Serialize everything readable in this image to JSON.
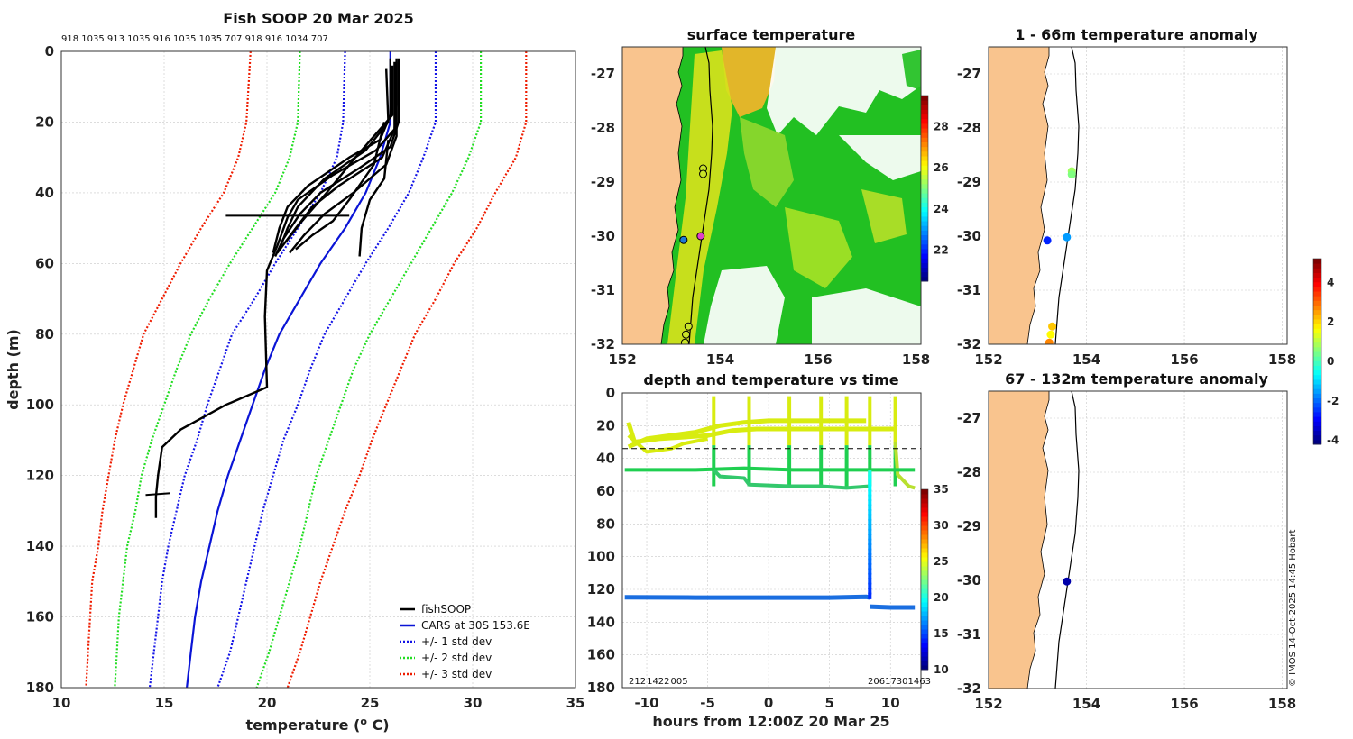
{
  "chart_data": [
    {
      "id": "profile",
      "type": "line",
      "title": "Fish SOOP 20 Mar 2025",
      "top_labels": "918 1035 913 1035 916 1035 1035 707 918 916 1034 707",
      "xlabel": "temperature (o C)",
      "ylabel": "depth (m)",
      "xlim": [
        10,
        35
      ],
      "ylim": [
        180,
        0
      ],
      "xticks": [
        "10",
        "15",
        "20",
        "25",
        "30",
        "35"
      ],
      "yticks": [
        "0",
        "20",
        "40",
        "60",
        "80",
        "100",
        "120",
        "140",
        "160",
        "180"
      ],
      "legend": [
        "fishSOOP",
        "CARS at 30S 153.6E",
        "+/- 1 std dev",
        "+/- 2 std dev",
        "+/- 3 std dev"
      ],
      "colors": {
        "fish": "#000000",
        "cars": "#0a14d6",
        "std1": "#1414e6",
        "std2": "#22dd22",
        "std3": "#ee1c00"
      },
      "series": {
        "cars": [
          [
            26,
            0
          ],
          [
            26,
            20
          ],
          [
            25.5,
            30
          ],
          [
            24.8,
            40
          ],
          [
            23.8,
            50
          ],
          [
            22.6,
            60
          ],
          [
            21.6,
            70
          ],
          [
            20.6,
            80
          ],
          [
            19.9,
            90
          ],
          [
            19.3,
            100
          ],
          [
            18.7,
            110
          ],
          [
            18.1,
            120
          ],
          [
            17.6,
            130
          ],
          [
            17.2,
            140
          ],
          [
            16.8,
            150
          ],
          [
            16.5,
            160
          ],
          [
            16.3,
            170
          ],
          [
            16.1,
            180
          ]
        ],
        "std1_high": [
          [
            28.2,
            0
          ],
          [
            28.2,
            20
          ],
          [
            27.6,
            30
          ],
          [
            26.9,
            40
          ],
          [
            25.9,
            50
          ],
          [
            24.8,
            60
          ],
          [
            23.8,
            70
          ],
          [
            22.8,
            80
          ],
          [
            22.1,
            90
          ],
          [
            21.5,
            100
          ],
          [
            20.8,
            110
          ],
          [
            20.3,
            120
          ],
          [
            19.8,
            130
          ],
          [
            19.4,
            140
          ],
          [
            19.0,
            150
          ],
          [
            18.6,
            160
          ],
          [
            18.2,
            170
          ],
          [
            17.6,
            180
          ]
        ],
        "std1_low": [
          [
            23.8,
            0
          ],
          [
            23.7,
            20
          ],
          [
            23.4,
            30
          ],
          [
            22.6,
            40
          ],
          [
            21.5,
            50
          ],
          [
            20.4,
            60
          ],
          [
            19.4,
            70
          ],
          [
            18.3,
            80
          ],
          [
            17.7,
            90
          ],
          [
            17.1,
            100
          ],
          [
            16.6,
            110
          ],
          [
            16.0,
            120
          ],
          [
            15.6,
            130
          ],
          [
            15.2,
            140
          ],
          [
            14.9,
            150
          ],
          [
            14.7,
            160
          ],
          [
            14.5,
            170
          ],
          [
            14.3,
            180
          ]
        ],
        "std2_high": [
          [
            30.4,
            0
          ],
          [
            30.4,
            20
          ],
          [
            29.8,
            30
          ],
          [
            29.0,
            40
          ],
          [
            28.0,
            50
          ],
          [
            27.0,
            60
          ],
          [
            26.0,
            70
          ],
          [
            25.0,
            80
          ],
          [
            24.2,
            90
          ],
          [
            23.6,
            100
          ],
          [
            23.0,
            110
          ],
          [
            22.4,
            120
          ],
          [
            22.0,
            130
          ],
          [
            21.6,
            140
          ],
          [
            21.1,
            150
          ],
          [
            20.6,
            160
          ],
          [
            20.1,
            170
          ],
          [
            19.5,
            180
          ]
        ],
        "std2_low": [
          [
            21.6,
            0
          ],
          [
            21.5,
            20
          ],
          [
            21.1,
            30
          ],
          [
            20.4,
            40
          ],
          [
            19.3,
            50
          ],
          [
            18.2,
            60
          ],
          [
            17.2,
            70
          ],
          [
            16.3,
            80
          ],
          [
            15.6,
            90
          ],
          [
            15.0,
            100
          ],
          [
            14.4,
            110
          ],
          [
            13.9,
            120
          ],
          [
            13.6,
            130
          ],
          [
            13.2,
            140
          ],
          [
            13.0,
            150
          ],
          [
            12.8,
            160
          ],
          [
            12.7,
            170
          ],
          [
            12.6,
            180
          ]
        ],
        "std3_high": [
          [
            32.6,
            0
          ],
          [
            32.6,
            20
          ],
          [
            32.1,
            30
          ],
          [
            31.1,
            40
          ],
          [
            30.2,
            50
          ],
          [
            29.1,
            60
          ],
          [
            28.2,
            70
          ],
          [
            27.2,
            80
          ],
          [
            26.5,
            90
          ],
          [
            25.8,
            100
          ],
          [
            25.1,
            110
          ],
          [
            24.5,
            120
          ],
          [
            23.8,
            130
          ],
          [
            23.2,
            140
          ],
          [
            22.6,
            150
          ],
          [
            22.1,
            160
          ],
          [
            21.6,
            170
          ],
          [
            21.0,
            180
          ]
        ],
        "std3_low": [
          [
            19.2,
            0
          ],
          [
            19.0,
            20
          ],
          [
            18.6,
            30
          ],
          [
            17.9,
            40
          ],
          [
            16.8,
            50
          ],
          [
            15.8,
            60
          ],
          [
            14.9,
            70
          ],
          [
            14.0,
            80
          ],
          [
            13.5,
            90
          ],
          [
            13.0,
            100
          ],
          [
            12.6,
            110
          ],
          [
            12.3,
            120
          ],
          [
            12.0,
            130
          ],
          [
            11.8,
            140
          ],
          [
            11.5,
            150
          ],
          [
            11.4,
            160
          ],
          [
            11.3,
            170
          ],
          [
            11.2,
            180
          ]
        ],
        "fish": [
          [
            [
              26.3,
              2
            ],
            [
              26.3,
              15
            ],
            [
              26.2,
              22
            ],
            [
              25.3,
              28
            ],
            [
              23.2,
              35
            ],
            [
              21.5,
              42
            ],
            [
              21.0,
              47
            ],
            [
              20.5,
              55
            ],
            [
              20.0,
              62
            ],
            [
              19.9,
              75
            ],
            [
              20.0,
              95
            ],
            [
              18.0,
              100
            ],
            [
              15.8,
              107
            ],
            [
              14.9,
              112
            ],
            [
              14.7,
              120
            ],
            [
              14.6,
              126
            ],
            [
              14.6,
              132
            ]
          ],
          [
            [
              26.0,
              2
            ],
            [
              26.0,
              18
            ],
            [
              25.5,
              25
            ],
            [
              24.0,
              30
            ],
            [
              22.0,
              38
            ],
            [
              21.0,
              44
            ],
            [
              20.6,
              50
            ],
            [
              20.3,
              57
            ]
          ],
          [
            [
              26.4,
              2
            ],
            [
              26.4,
              20
            ],
            [
              26.0,
              27
            ],
            [
              24.5,
              33
            ],
            [
              22.6,
              40
            ],
            [
              21.6,
              46
            ],
            [
              20.8,
              53
            ],
            [
              20.4,
              58
            ]
          ],
          [
            [
              25.8,
              5
            ],
            [
              25.9,
              20
            ],
            [
              24.8,
              28
            ],
            [
              22.8,
              36
            ],
            [
              21.5,
              44
            ],
            [
              21.0,
              50
            ],
            [
              20.6,
              56
            ]
          ],
          [
            [
              26.2,
              3
            ],
            [
              26.2,
              22
            ],
            [
              25.6,
              30
            ],
            [
              23.5,
              38
            ],
            [
              22.2,
              44
            ],
            [
              21.4,
              50
            ],
            [
              20.5,
              57
            ]
          ],
          [
            [
              26.3,
              3
            ],
            [
              26.3,
              24
            ],
            [
              25.8,
              32
            ],
            [
              24.2,
              40
            ],
            [
              22.8,
              46
            ],
            [
              21.8,
              52
            ],
            [
              21.1,
              57
            ]
          ],
          [
            [
              26.1,
              4
            ],
            [
              26.1,
              18
            ],
            [
              24.3,
              30
            ],
            [
              22.9,
              40
            ],
            [
              21.7,
              48
            ],
            [
              20.9,
              54
            ]
          ],
          [
            [
              25.7,
              20
            ],
            [
              25.2,
              32
            ],
            [
              24.0,
              42
            ],
            [
              23.2,
              48
            ],
            [
              22.2,
              52
            ],
            [
              21.4,
              56
            ]
          ],
          [
            [
              25.9,
              25
            ],
            [
              25.7,
              36
            ],
            [
              25.0,
              42
            ],
            [
              24.6,
              50
            ],
            [
              24.5,
              58
            ]
          ]
        ],
        "fish_spike_47": [
          [
            18.0,
            46.5
          ],
          [
            24.0,
            46.5
          ]
        ],
        "fish_spike_125": [
          [
            14.1,
            125.5
          ],
          [
            15.3,
            125
          ]
        ]
      }
    },
    {
      "id": "sst",
      "type": "heatmap",
      "title": "surface temperature",
      "xlim": [
        152,
        158.1
      ],
      "ylim": [
        -32,
        -26.5
      ],
      "xticks": [
        "152",
        "154",
        "156",
        "158"
      ],
      "yticks": [
        "-27",
        "-28",
        "-29",
        "-30",
        "-31",
        "-32"
      ],
      "colorbar": {
        "range": [
          20.5,
          29.5
        ],
        "ticks": [
          "22",
          "24",
          "26",
          "28"
        ]
      },
      "stations": [
        [
          153.65,
          -28.75
        ],
        [
          153.65,
          -28.85
        ],
        [
          153.6,
          -30.0
        ],
        [
          153.25,
          -30.07
        ],
        [
          153.35,
          -31.67
        ],
        [
          153.3,
          -31.82
        ],
        [
          153.28,
          -31.97
        ]
      ]
    },
    {
      "id": "dtime",
      "type": "scatter",
      "title": "depth and temperature vs time",
      "xlabel": "hours from 12:00Z 20 Mar 25",
      "xlim": [
        -12,
        12.5
      ],
      "ylim": [
        180,
        0
      ],
      "xticks": [
        "-10",
        "-5",
        "0",
        "5",
        "10"
      ],
      "yticks": [
        "0",
        "20",
        "40",
        "60",
        "80",
        "100",
        "120",
        "140",
        "160",
        "180"
      ],
      "colorbar": {
        "range": [
          10,
          35
        ],
        "ticks": [
          "10",
          "15",
          "20",
          "25",
          "30",
          "35"
        ]
      },
      "dashed_depth": 34,
      "bottom_left_labels": "212 1422 005",
      "bottom_right_labels": "20617301463"
    },
    {
      "id": "anom1",
      "type": "scatter",
      "title": "1 - 66m temperature anomaly",
      "xlim": [
        152,
        158.1
      ],
      "ylim": [
        -32,
        -26.5
      ],
      "xticks": [
        "152",
        "154",
        "156",
        "158"
      ],
      "yticks": [
        "-27",
        "-28",
        "-29",
        "-30",
        "-31",
        "-32"
      ],
      "points": [
        {
          "lon": 153.7,
          "lat": -28.8,
          "v": 0.8
        },
        {
          "lon": 153.7,
          "lat": -28.86,
          "v": 0.5
        },
        {
          "lon": 153.6,
          "lat": -30.02,
          "v": -1.6
        },
        {
          "lon": 153.2,
          "lat": -30.08,
          "v": -2.7
        },
        {
          "lon": 153.3,
          "lat": -31.67,
          "v": 2.2
        },
        {
          "lon": 153.27,
          "lat": -31.82,
          "v": 1.7
        },
        {
          "lon": 153.24,
          "lat": -31.97,
          "v": 2.8
        }
      ]
    },
    {
      "id": "anom2",
      "type": "scatter",
      "title": "67 - 132m temperature anomaly",
      "xlim": [
        152,
        158.1
      ],
      "ylim": [
        -32,
        -26.5
      ],
      "xticks": [
        "152",
        "154",
        "156",
        "158"
      ],
      "yticks": [
        "-27",
        "-28",
        "-29",
        "-30",
        "-31",
        "-32"
      ],
      "points": [
        {
          "lon": 153.6,
          "lat": -30.02,
          "v": -3.8
        }
      ]
    },
    {
      "id": "anom_colorbar",
      "type": "colorbar",
      "range": [
        -4.2,
        5.2
      ],
      "ticks": [
        "-4",
        "-2",
        "0",
        "2",
        "4"
      ]
    }
  ],
  "watermark": "© IMOS 14-Oct-2025 14:45 Hobart"
}
